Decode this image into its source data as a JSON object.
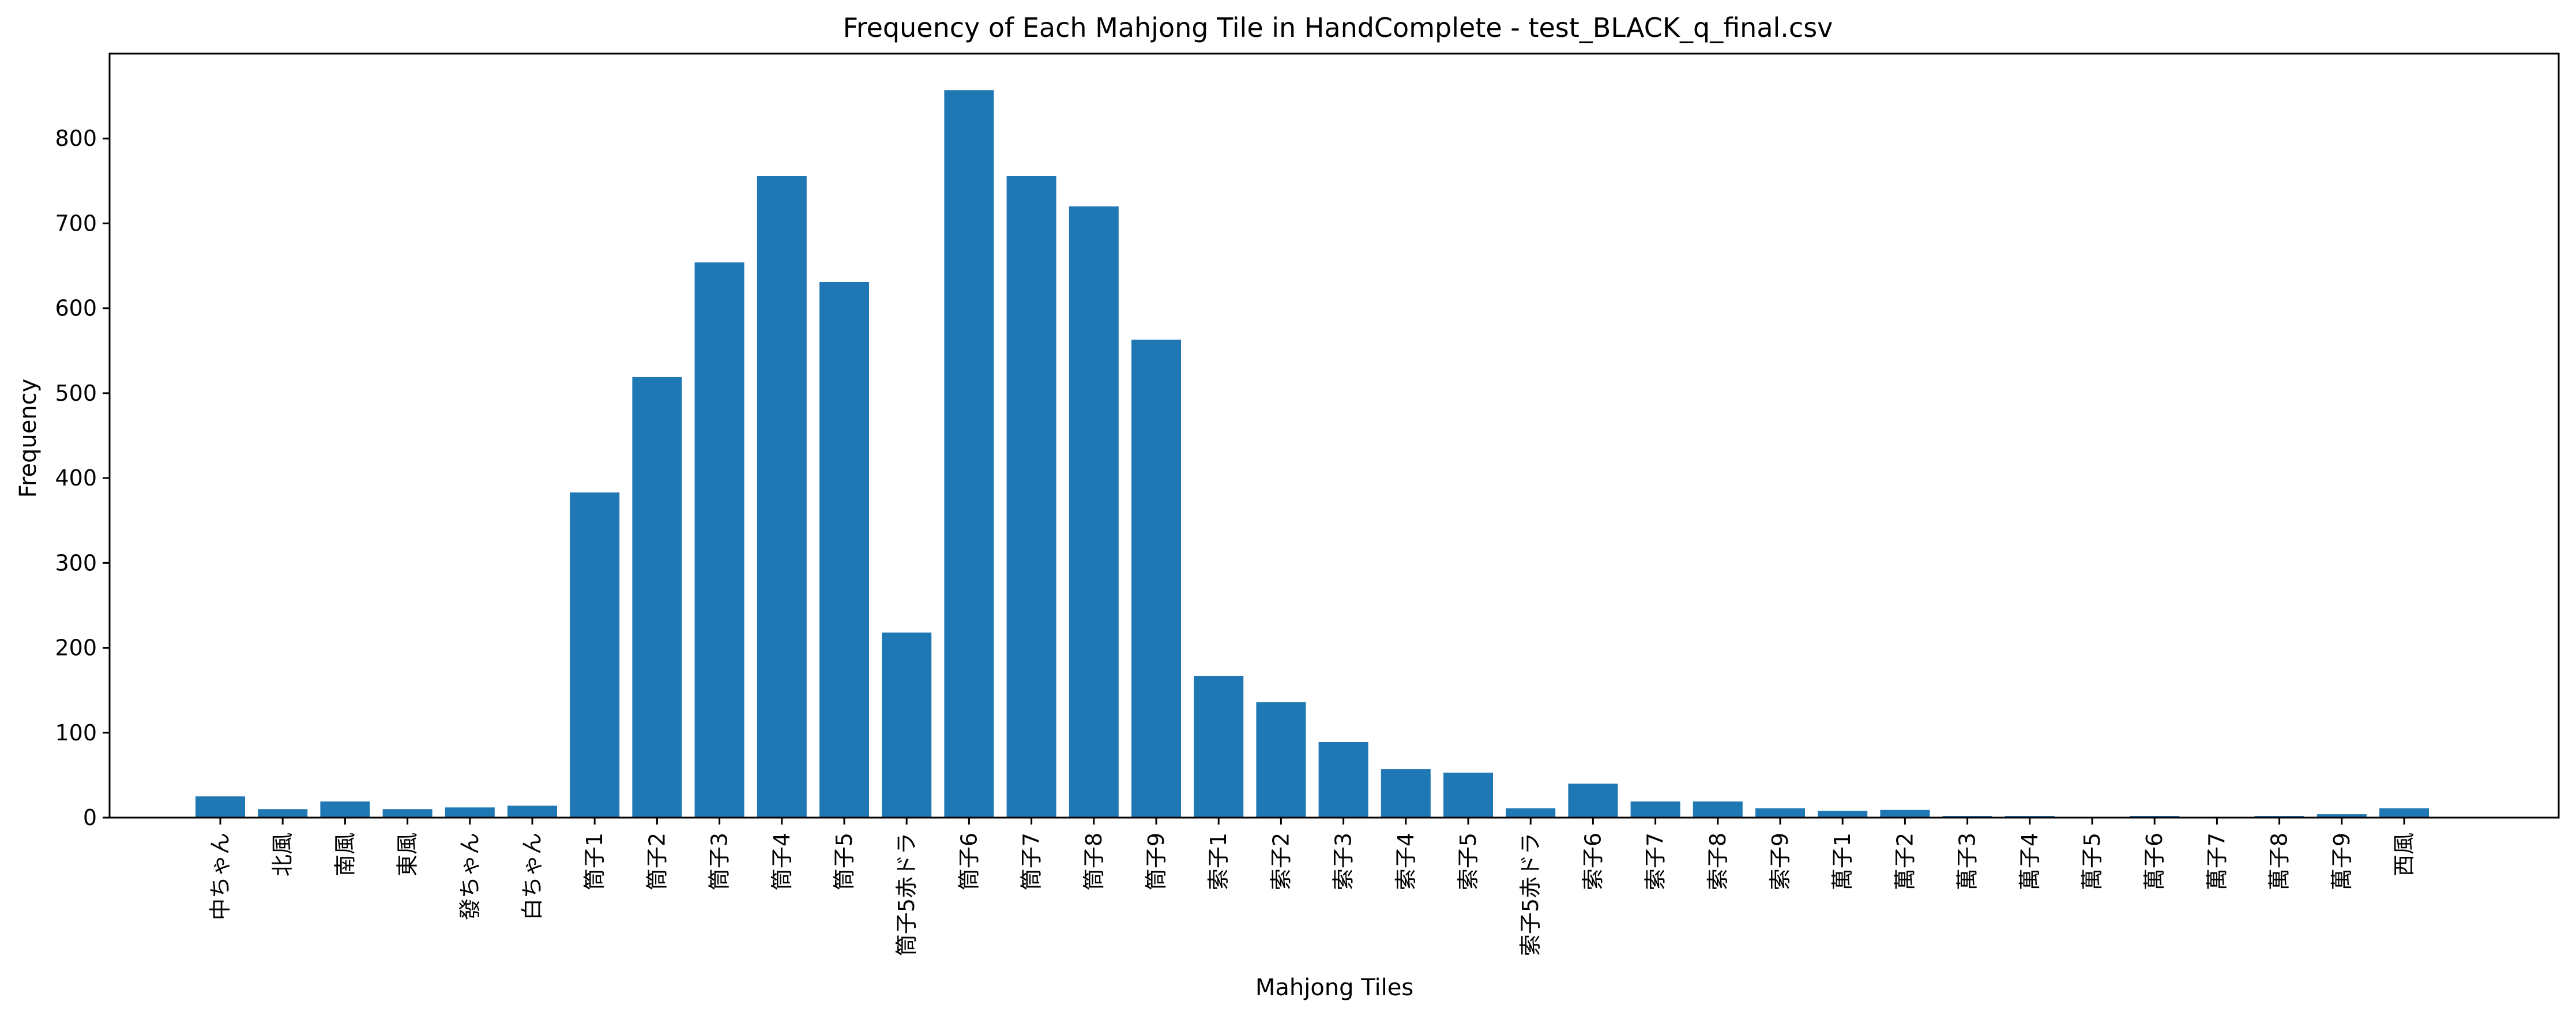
{
  "chart_data": {
    "type": "bar",
    "title": "Frequency of Each Mahjong Tile in HandComplete - test_BLACK_q_final.csv",
    "xlabel": "Mahjong Tiles",
    "ylabel": "Frequency",
    "ylim": [
      0,
      900
    ],
    "yticks": [
      0,
      100,
      200,
      300,
      400,
      500,
      600,
      700,
      800
    ],
    "grid": false,
    "bar_color": "#1f77b4",
    "categories": [
      "中ちゃん",
      "北風",
      "南風",
      "東風",
      "發ちゃん",
      "白ちゃん",
      "筒子1",
      "筒子2",
      "筒子3",
      "筒子4",
      "筒子5",
      "筒子5赤ドラ",
      "筒子6",
      "筒子7",
      "筒子8",
      "筒子9",
      "索子1",
      "索子2",
      "索子3",
      "索子4",
      "索子5",
      "索子5赤ドラ",
      "索子6",
      "索子7",
      "索子8",
      "索子9",
      "萬子1",
      "萬子2",
      "萬子3",
      "萬子4",
      "萬子5",
      "萬子6",
      "萬子7",
      "萬子8",
      "萬子9",
      "西風"
    ],
    "values": [
      25,
      10,
      19,
      10,
      12,
      14,
      383,
      519,
      654,
      756,
      631,
      218,
      857,
      756,
      720,
      563,
      167,
      136,
      89,
      57,
      53,
      11,
      40,
      19,
      19,
      11,
      8,
      9,
      2,
      2,
      0,
      2,
      1,
      2,
      4,
      11
    ]
  }
}
